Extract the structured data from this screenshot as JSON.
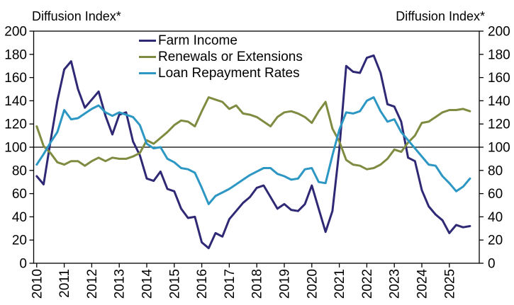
{
  "chart_data": {
    "type": "line",
    "axis_title_left": "Diffusion Index*",
    "axis_title_right": "Diffusion Index*",
    "ylim": [
      0,
      200
    ],
    "y_ticks": [
      0,
      20,
      40,
      60,
      80,
      100,
      120,
      140,
      160,
      180,
      200
    ],
    "x_tick_labels": [
      "2010",
      "2011",
      "2012",
      "2013",
      "2014",
      "2015",
      "2016",
      "2017",
      "2018",
      "2019",
      "2020",
      "2021",
      "2022",
      "2023",
      "2024",
      "2025"
    ],
    "x_start": "2010 Q1",
    "x_end": "2025 Q4",
    "points_per_year": 4,
    "reference_line_y": 100,
    "grid": false,
    "legend_position": "top-center-inside",
    "axis_color": "#000000",
    "series": [
      {
        "name": "Farm Income",
        "color": "#2F2975",
        "values": [
          75,
          68,
          105,
          140,
          167,
          174,
          150,
          134,
          141,
          148,
          127,
          111,
          128,
          130,
          105,
          93,
          73,
          71,
          79,
          64,
          62,
          47,
          39,
          40,
          18,
          13,
          26,
          23,
          38,
          45,
          52,
          57,
          65,
          67,
          57,
          47,
          51,
          46,
          45,
          51,
          67,
          47,
          27,
          45,
          98,
          170,
          165,
          164,
          177,
          179,
          164,
          137,
          135,
          122,
          91,
          88,
          63,
          49,
          42,
          37,
          26,
          33,
          31,
          32
        ]
      },
      {
        "name": "Renewals or Extensions",
        "color": "#7E8C41",
        "values": [
          118,
          101,
          95,
          87,
          85,
          88,
          88,
          84,
          88,
          91,
          88,
          91,
          90,
          90,
          92,
          95,
          106,
          103,
          108,
          113,
          119,
          123,
          122,
          118,
          131,
          143,
          141,
          139,
          133,
          136,
          129,
          128,
          126,
          122,
          118,
          126,
          130,
          131,
          129,
          126,
          121,
          131,
          139,
          116,
          105,
          89,
          85,
          84,
          81,
          82,
          85,
          90,
          98,
          96,
          104,
          110,
          121,
          122,
          126,
          130,
          132,
          132,
          133,
          131
        ]
      },
      {
        "name": "Loan Repayment Rates",
        "color": "#2D97C4",
        "values": [
          85,
          94,
          104,
          113,
          132,
          124,
          125,
          129,
          133,
          136,
          130,
          127,
          130,
          128,
          126,
          119,
          103,
          99,
          100,
          90,
          87,
          82,
          81,
          78,
          65,
          51,
          58,
          61,
          64,
          68,
          72,
          76,
          79,
          82,
          82,
          77,
          75,
          72,
          73,
          81,
          82,
          70,
          69,
          93,
          115,
          130,
          129,
          131,
          140,
          143,
          131,
          122,
          124,
          113,
          106,
          99,
          92,
          85,
          84,
          75,
          69,
          62,
          66,
          73
        ]
      }
    ]
  }
}
